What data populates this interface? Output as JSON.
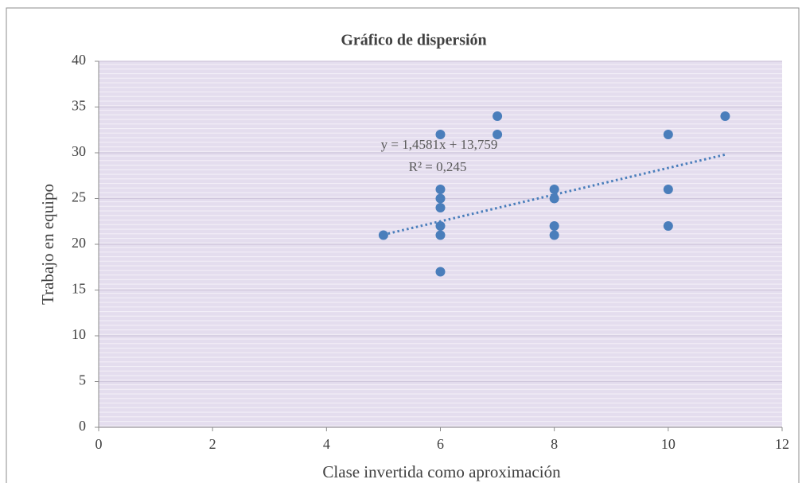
{
  "chart_data": {
    "type": "scatter",
    "title": "Gráfico de dispersión",
    "x_label": "Clase invertida como aproximación",
    "y_label": "Trabajo en equipo",
    "series": [
      {
        "color": "#4a7ebb",
        "x": [
          5,
          6,
          6,
          6,
          6,
          6,
          6,
          6,
          7,
          7,
          8,
          8,
          8,
          8,
          10,
          10,
          10,
          11
        ],
        "values": [
          21,
          32,
          26,
          25,
          24,
          22,
          21,
          17,
          34,
          32,
          26,
          25,
          22,
          21,
          32,
          26,
          22,
          34
        ]
      }
    ],
    "trendline": {
      "x": [
        5,
        11
      ],
      "values": [
        21.05,
        29.8
      ],
      "color": "#4a7ebb",
      "style": "dotted"
    },
    "annotations": [
      "y = 1,4581x  + 13,759",
      "R² = 0,245"
    ],
    "xlim": [
      0,
      12
    ],
    "xticks": [
      0,
      2,
      4,
      6,
      8,
      10,
      12
    ],
    "ylim": [
      0,
      40
    ],
    "yticks": [
      0,
      5,
      10,
      15,
      20,
      25,
      30,
      35,
      40
    ],
    "grid": true
  }
}
